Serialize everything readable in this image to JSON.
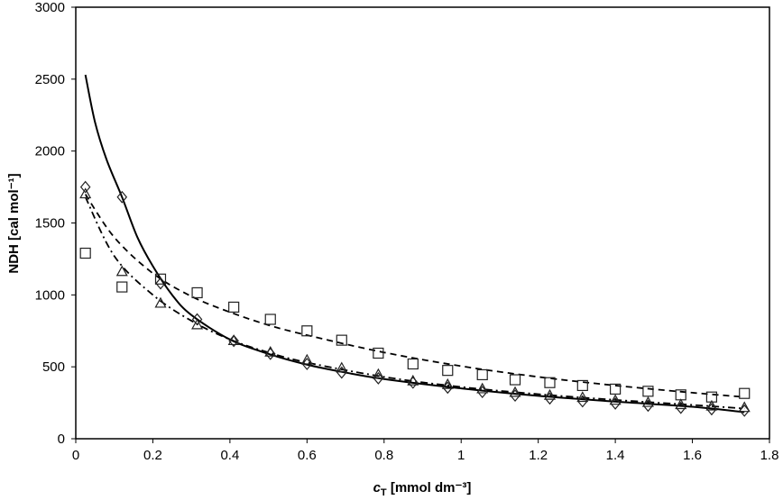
{
  "chart_data": {
    "type": "scatter",
    "xlabel_main": "c",
    "xlabel_sub": "T",
    "xlabel_rest": " [mmol dm⁻³]",
    "ylabel": "NDH [cal mol⁻¹]",
    "xlim": [
      0,
      1.8
    ],
    "ylim": [
      0,
      3000
    ],
    "xticks": [
      0,
      0.2,
      0.4,
      0.6,
      0.8,
      1,
      1.2,
      1.4,
      1.6,
      1.8
    ],
    "xtick_labels": [
      "0",
      "0.2",
      "0.4",
      "0.6",
      "0.8",
      "1",
      "1.2",
      "1.4",
      "1.6",
      "1.8"
    ],
    "yticks": [
      0,
      500,
      1000,
      1500,
      2000,
      2500,
      3000
    ],
    "ytick_labels": [
      "0",
      "500",
      "1000",
      "1500",
      "2000",
      "2500",
      "3000"
    ],
    "grid": false,
    "x": [
      0.025,
      0.12,
      0.22,
      0.315,
      0.41,
      0.505,
      0.6,
      0.69,
      0.785,
      0.875,
      0.965,
      1.055,
      1.14,
      1.23,
      1.315,
      1.4,
      1.485,
      1.57,
      1.65,
      1.735
    ],
    "series": [
      {
        "name": "diamonds",
        "marker": "diamond",
        "values": [
          1750,
          1680,
          1080,
          830,
          680,
          590,
          520,
          460,
          420,
          390,
          355,
          325,
          300,
          280,
          260,
          245,
          230,
          215,
          205,
          195
        ]
      },
      {
        "name": "squares",
        "marker": "square",
        "values": [
          1290,
          1055,
          1110,
          1015,
          915,
          830,
          750,
          685,
          595,
          520,
          475,
          445,
          410,
          390,
          370,
          345,
          330,
          305,
          290,
          315
        ]
      },
      {
        "name": "triangles",
        "marker": "triangle",
        "values": [
          1700,
          1160,
          940,
          790,
          680,
          600,
          545,
          490,
          445,
          400,
          375,
          345,
          320,
          300,
          285,
          265,
          250,
          235,
          225,
          215
        ]
      }
    ],
    "fits": [
      {
        "name": "solid-fit",
        "style": "solid",
        "points": [
          [
            0.025,
            2530
          ],
          [
            0.05,
            2200
          ],
          [
            0.08,
            1940
          ],
          [
            0.12,
            1680
          ],
          [
            0.16,
            1400
          ],
          [
            0.2,
            1200
          ],
          [
            0.25,
            1000
          ],
          [
            0.3,
            860
          ],
          [
            0.4,
            690
          ],
          [
            0.5,
            590
          ],
          [
            0.6,
            515
          ],
          [
            0.7,
            460
          ],
          [
            0.8,
            415
          ],
          [
            1.0,
            350
          ],
          [
            1.2,
            298
          ],
          [
            1.4,
            258
          ],
          [
            1.6,
            222
          ],
          [
            1.735,
            185
          ]
        ]
      },
      {
        "name": "dashed-fit",
        "style": "dashed",
        "points": [
          [
            0.025,
            1700
          ],
          [
            0.1,
            1400
          ],
          [
            0.2,
            1150
          ],
          [
            0.3,
            990
          ],
          [
            0.4,
            880
          ],
          [
            0.5,
            790
          ],
          [
            0.6,
            720
          ],
          [
            0.8,
            600
          ],
          [
            1.0,
            505
          ],
          [
            1.2,
            430
          ],
          [
            1.4,
            370
          ],
          [
            1.6,
            320
          ],
          [
            1.735,
            290
          ]
        ]
      },
      {
        "name": "dashdot-fit",
        "style": "dashdot",
        "points": [
          [
            0.025,
            1680
          ],
          [
            0.1,
            1270
          ],
          [
            0.2,
            1000
          ],
          [
            0.3,
            820
          ],
          [
            0.4,
            690
          ],
          [
            0.5,
            600
          ],
          [
            0.6,
            530
          ],
          [
            0.8,
            430
          ],
          [
            1.0,
            360
          ],
          [
            1.2,
            310
          ],
          [
            1.4,
            270
          ],
          [
            1.6,
            235
          ],
          [
            1.735,
            210
          ]
        ]
      }
    ]
  }
}
